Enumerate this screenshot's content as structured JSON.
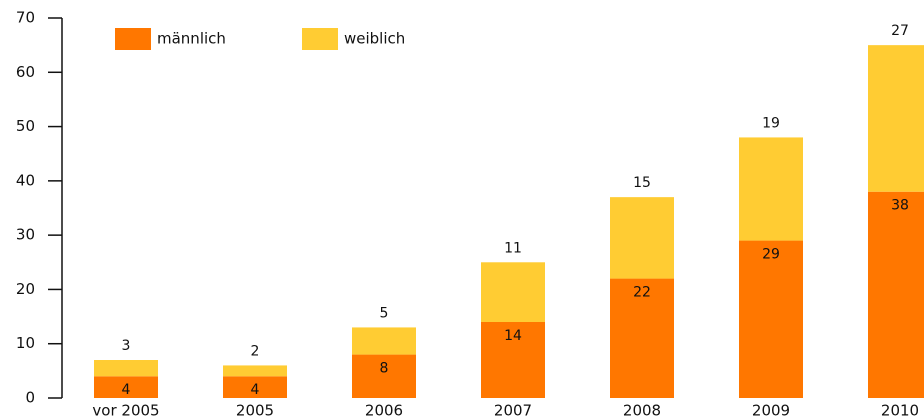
{
  "chart_data": {
    "type": "stacked_bar",
    "categories": [
      "vor 2005",
      "2005",
      "2006",
      "2007",
      "2008",
      "2009",
      "2010"
    ],
    "series": [
      {
        "name": "männlich",
        "color": "#ff7700",
        "values": [
          4,
          4,
          8,
          14,
          22,
          29,
          38
        ]
      },
      {
        "name": "weiblich",
        "color": "#ffcc33",
        "values": [
          3,
          2,
          5,
          11,
          15,
          19,
          27
        ]
      }
    ],
    "ylim": [
      0,
      70
    ],
    "yticks": [
      0,
      10,
      20,
      30,
      40,
      50,
      60,
      70
    ],
    "grid": false,
    "legend": "top-left"
  }
}
